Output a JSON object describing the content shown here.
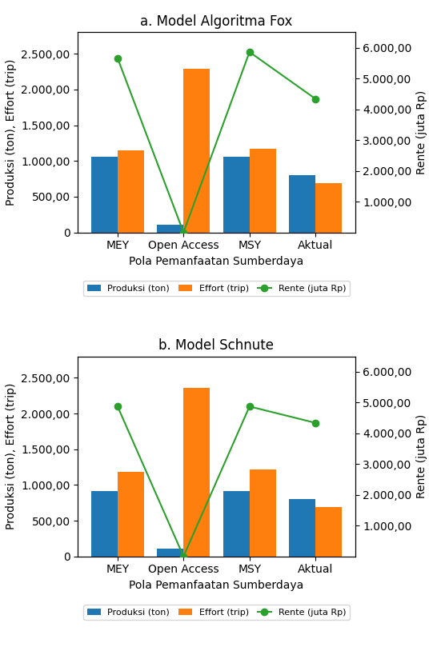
{
  "chart_data": [
    {
      "type": "bar",
      "title": "a. Model Algoritma Fox",
      "x_label": "Pola Pemanfaatan Sumberdaya",
      "y_label": "Produksi (ton), Effort (trip)",
      "y2_label": "Rente (juta Rp)",
      "categories": [
        "MEY",
        "Open Access",
        "MSY",
        "Aktual"
      ],
      "series": [
        {
          "name": "Produksi (ton)",
          "type": "bar",
          "values": [
            1054.15,
            104.95,
            1054.84,
            798.9
          ]
        },
        {
          "name": "Effort (trip)",
          "type": "bar",
          "values": [
            1144,
            2289,
            1174,
            690
          ]
        },
        {
          "name": "Rente (juta Rp)",
          "type": "line",
          "marker": "o",
          "axis": "y2",
          "values": [
            5665.63,
            0,
            5861.74,
            4339.76
          ]
        }
      ],
      "ylim": [
        0,
        2800
      ],
      "yticks": [
        0,
        {
          "value": 500,
          "label": "500,00"
        },
        {
          "value": 1000,
          "label": "1.000,00"
        },
        {
          "value": 1500,
          "label": "1.500,00"
        },
        {
          "value": 2000,
          "label": "2.000,00"
        },
        {
          "value": 2500,
          "label": "2.500,00"
        }
      ],
      "y2lim": [
        0,
        6500
      ],
      "y2ticks": [
        {
          "value": 1000,
          "label": "1.000,00"
        },
        {
          "value": 2000,
          "label": "2.000,00"
        },
        {
          "value": 3000,
          "label": "3.000,00"
        },
        {
          "value": 4000,
          "label": "4.000,00"
        },
        {
          "value": 5000,
          "label": "5.000,00"
        },
        {
          "value": 6000,
          "label": "6.000,00"
        }
      ],
      "grid": false,
      "legend": "upper center"
    },
    {
      "type": "bar",
      "title": "b. Model Schnute",
      "x_label": "Pola Pemanfaatan Sumberdaya",
      "y_label": "Produksi (ton), Effort (trip)",
      "y2_label": "Rente (juta Rp)",
      "categories": [
        "MEY",
        "Open Access",
        "MSY",
        "Aktual"
      ],
      "series": [
        {
          "name": "Produksi (ton)",
          "type": "bar",
          "values": [
            916.64,
            108.39,
            917.49,
            798.9
          ]
        },
        {
          "name": "Effort (trip)",
          "type": "bar",
          "values": [
            1182,
            2364,
            1219,
            690
          ]
        },
        {
          "name": "Rente (juta Rp)",
          "type": "line",
          "marker": "o",
          "axis": "y2",
          "values": [
            4878.08,
            0,
            4873.26,
            4339.76
          ]
        }
      ],
      "ylim": [
        0,
        2800
      ],
      "yticks": [
        0,
        {
          "value": 500,
          "label": "500,00"
        },
        {
          "value": 1000,
          "label": "1.000,00"
        },
        {
          "value": 1500,
          "label": "1.500,00"
        },
        {
          "value": 2000,
          "label": "2.000,00"
        },
        {
          "value": 2500,
          "label": "2.500,00"
        }
      ],
      "y2lim": [
        0,
        6500
      ],
      "y2ticks": [
        {
          "value": 1000,
          "label": "1.000,00"
        },
        {
          "value": 2000,
          "label": "2.000,00"
        },
        {
          "value": 3000,
          "label": "3.000,00"
        },
        {
          "value": 4000,
          "label": "4.000,00"
        },
        {
          "value": 5000,
          "label": "5.000,00"
        },
        {
          "value": 6000,
          "label": "6.000,00"
        }
      ],
      "grid": false,
      "legend": "upper center"
    }
  ]
}
